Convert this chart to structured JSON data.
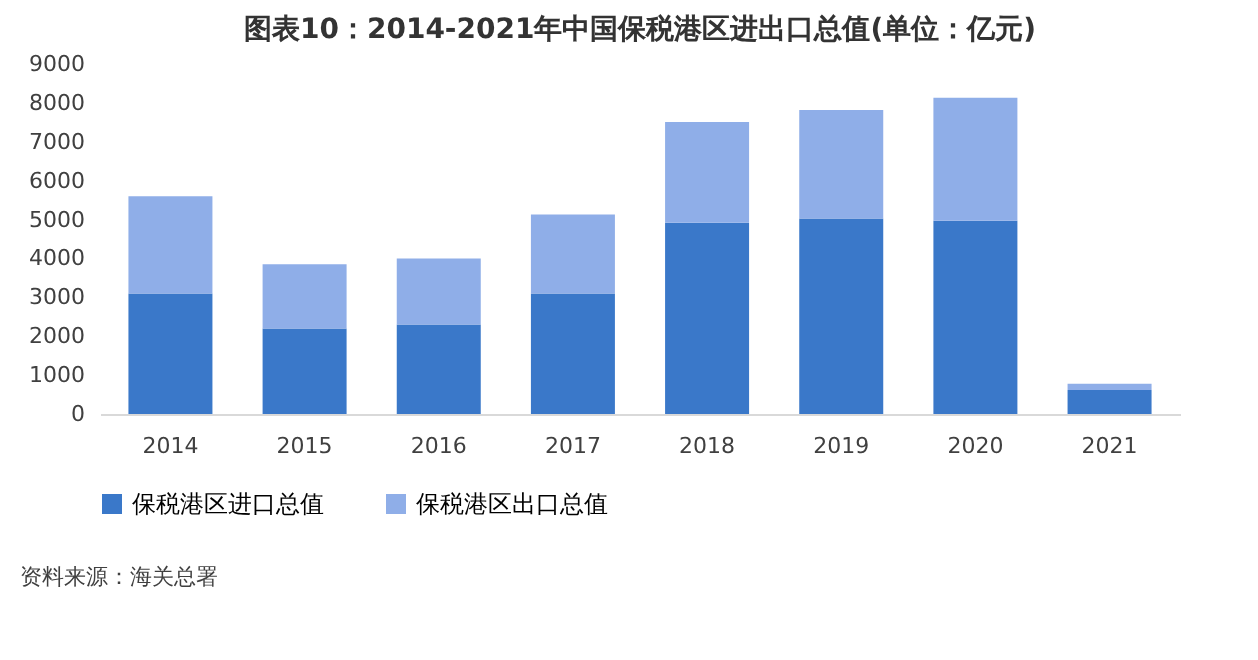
{
  "chart_data": {
    "type": "bar",
    "title": "图表10：2014-2021年中国保税港区进出口总值(单位：亿元)",
    "categories": [
      "2014",
      "2015",
      "2016",
      "2017",
      "2018",
      "2019",
      "2020",
      "2021"
    ],
    "stacked": true,
    "series": [
      {
        "name": "保税港区进口总值",
        "color": "#3a78c9",
        "values": [
          3100,
          2200,
          2300,
          3100,
          4920,
          5030,
          4970,
          620
        ]
      },
      {
        "name": "保税港区出口总值",
        "color": "#8faee8",
        "values": [
          2500,
          1650,
          1700,
          2030,
          2590,
          2790,
          3160,
          160
        ]
      }
    ],
    "ylim": [
      0,
      9000
    ],
    "yticks": [
      0,
      1000,
      2000,
      3000,
      4000,
      5000,
      6000,
      7000,
      8000,
      9000
    ],
    "grid": false,
    "legend": "bottom",
    "annotations": [
      "资料来源：海关总署"
    ]
  }
}
